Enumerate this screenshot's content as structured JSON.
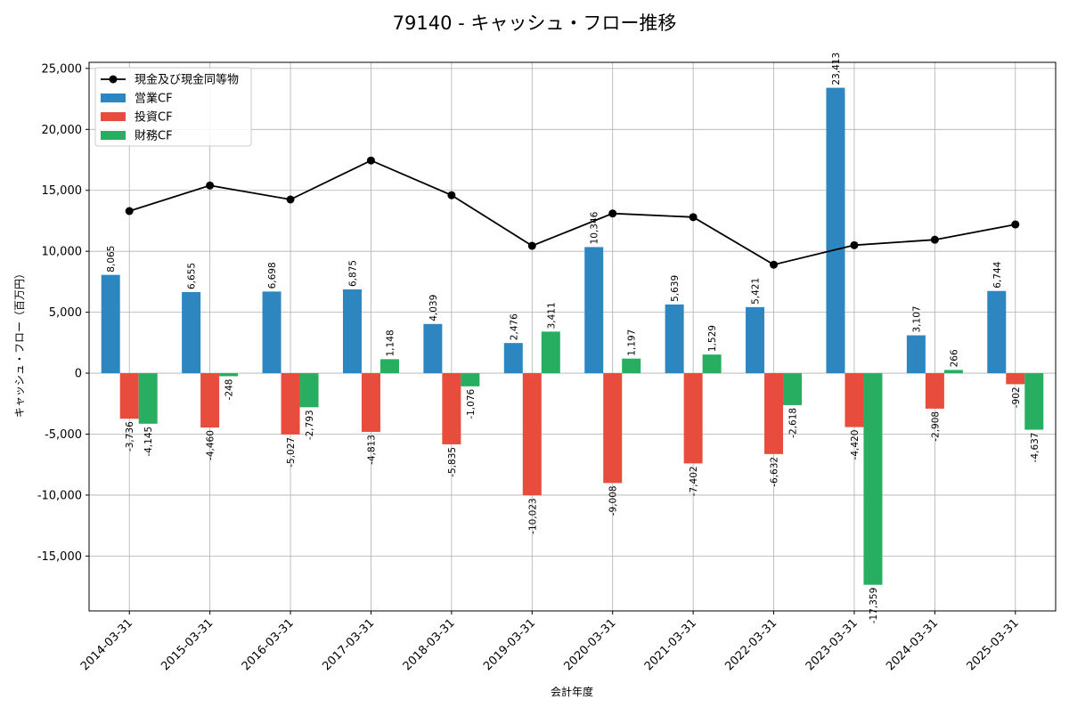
{
  "chart_data": {
    "type": "bar",
    "title": "79140 - キャッシュ・フロー推移",
    "xlabel": "会計年度",
    "ylabel": "キャッシュ・フロー（百万円）",
    "ylim": [
      -19500,
      25500
    ],
    "yticks": [
      -15000,
      -10000,
      -5000,
      0,
      5000,
      10000,
      15000,
      20000,
      25000
    ],
    "ytick_labels": [
      "-15,000",
      "-10,000",
      "-5,000",
      "0",
      "5,000",
      "10,000",
      "15,000",
      "20,000",
      "25,000"
    ],
    "grid": true,
    "legend_position": "top-left",
    "categories": [
      "2014-03-31",
      "2015-03-31",
      "2016-03-31",
      "2017-03-31",
      "2018-03-31",
      "2019-03-31",
      "2020-03-31",
      "2021-03-31",
      "2022-03-31",
      "2023-03-31",
      "2024-03-31",
      "2025-03-31"
    ],
    "line_series": {
      "name": "現金及び現金同等物",
      "color": "#000000",
      "values": [
        13300,
        15400,
        14250,
        17450,
        14600,
        10450,
        13100,
        12800,
        8900,
        10500,
        10950,
        12200
      ]
    },
    "series": [
      {
        "name": "営業CF",
        "color": "#2E86C1",
        "values": [
          8065,
          6655,
          6698,
          6875,
          4039,
          2476,
          10346,
          5639,
          5421,
          23413,
          3107,
          6744
        ],
        "labels": [
          "8,065",
          "6,655",
          "6,698",
          "6,875",
          "4,039",
          "2,476",
          "10,346",
          "5,639",
          "5,421",
          "23,413",
          "3,107",
          "6,744"
        ]
      },
      {
        "name": "投資CF",
        "color": "#E74C3C",
        "values": [
          -3736,
          -4460,
          -5027,
          -4813,
          -5835,
          -10023,
          -9008,
          -7402,
          -6632,
          -4420,
          -2908,
          -902
        ],
        "labels": [
          "-3,736",
          "-4,460",
          "-5,027",
          "-4,813",
          "-5,835",
          "-10,023",
          "-9,008",
          "-7,402",
          "-6,632",
          "-4,420",
          "-2,908",
          "-902"
        ]
      },
      {
        "name": "財務CF",
        "color": "#27AE60",
        "values": [
          -4145,
          -248,
          -2793,
          1148,
          -1076,
          3411,
          1197,
          1529,
          -2618,
          -17359,
          266,
          -4637
        ],
        "labels": [
          "-4,145",
          "-248",
          "-2,793",
          "1,148",
          "-1,076",
          "3,411",
          "1,197",
          "1,529",
          "-2,618",
          "-17,359",
          "266",
          "-4,637"
        ]
      }
    ]
  }
}
